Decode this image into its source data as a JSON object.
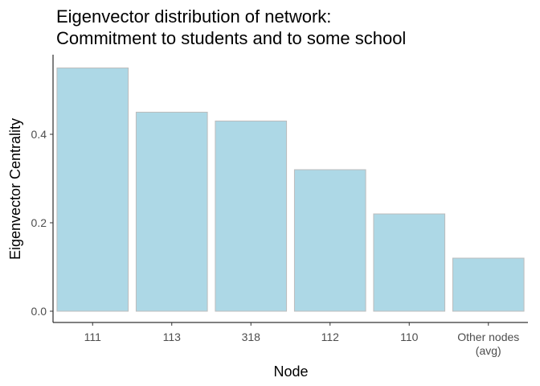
{
  "chart_data": {
    "type": "bar",
    "title_lines": [
      "Eigenvector distribution of network:",
      "Commitment to students and to some school"
    ],
    "xlabel": "Node",
    "ylabel": "Eigenvector Centrality",
    "categories": [
      [
        "111"
      ],
      [
        "113"
      ],
      [
        "318"
      ],
      [
        "112"
      ],
      [
        "110"
      ],
      [
        "Other nodes",
        "(avg)"
      ]
    ],
    "values": [
      0.55,
      0.45,
      0.43,
      0.32,
      0.22,
      0.12
    ],
    "ylim": [
      0,
      0.575
    ],
    "yticks": [
      0.0,
      0.2,
      0.4
    ],
    "ytick_labels": [
      "0.0",
      "0.2",
      "0.4"
    ],
    "grid": false,
    "bar_color": "#add8e6",
    "bar_outline_color": "#bcbcbc"
  }
}
